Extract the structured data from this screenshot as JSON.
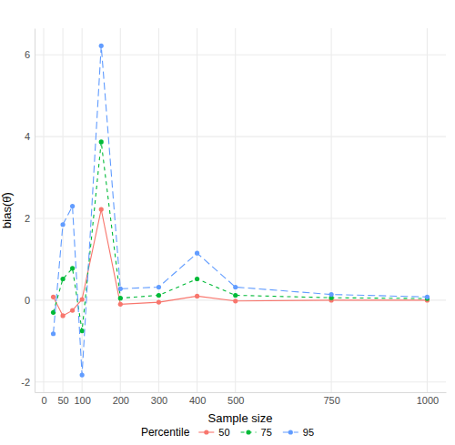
{
  "chart_data": {
    "type": "line",
    "x_label": "Sample size",
    "y_label": "bias(θ̂)",
    "legend_title": "Percentile",
    "legend": "bottom",
    "grid": true,
    "x": [
      25,
      50,
      75,
      100,
      150,
      200,
      300,
      400,
      500,
      750,
      1000
    ],
    "xlim": [
      -23.75,
      1048.75
    ],
    "xticks": [
      0,
      50,
      100,
      200,
      300,
      400,
      500,
      750,
      1000
    ],
    "ylim": [
      -2.25,
      6.65
    ],
    "yticks": [
      -2,
      0,
      2,
      4,
      6
    ],
    "series": [
      {
        "name": "50",
        "color": "#F8766D",
        "line_style": "solid",
        "marker": "circle",
        "values": [
          0.08,
          -0.38,
          -0.25,
          0.02,
          2.22,
          -0.1,
          -0.05,
          0.1,
          -0.02,
          0.0,
          0.0
        ]
      },
      {
        "name": "75",
        "color": "#00BA38",
        "line_style": "dashed",
        "marker": "circle",
        "values": [
          -0.3,
          0.52,
          0.78,
          -0.75,
          3.87,
          0.05,
          0.12,
          0.52,
          0.12,
          0.06,
          0.04
        ]
      },
      {
        "name": "95",
        "color": "#619CFF",
        "line_style": "longdash",
        "marker": "circle",
        "values": [
          -0.82,
          1.85,
          2.3,
          -1.83,
          6.22,
          0.28,
          0.32,
          1.15,
          0.32,
          0.14,
          0.08
        ]
      }
    ]
  }
}
